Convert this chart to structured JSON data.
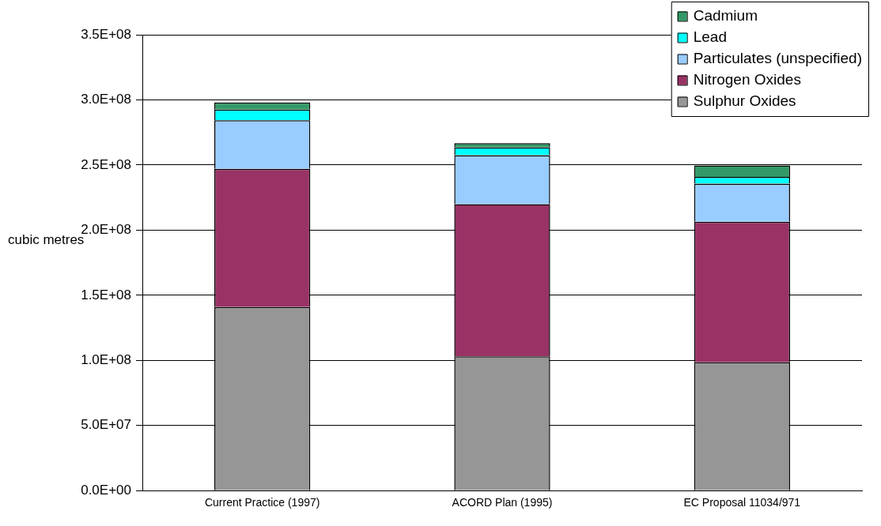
{
  "chart_data": {
    "type": "bar",
    "stacked": true,
    "ylabel": "cubic metres",
    "categories": [
      "Current Practice (1997)",
      "ACORD Plan (1995)",
      "EC Proposal 11034/971"
    ],
    "series": [
      {
        "name": "Sulphur Oxides",
        "color": "#969696",
        "values": [
          141000000,
          103000000,
          98500000
        ]
      },
      {
        "name": "Nitrogen Oxides",
        "color": "#993366",
        "values": [
          106000000,
          117000000,
          108000000
        ]
      },
      {
        "name": "Particulates (unspecified)",
        "color": "#99ccff",
        "values": [
          37300000,
          37600000,
          29200000
        ]
      },
      {
        "name": "Lead",
        "color": "#00ffff",
        "values": [
          8300000,
          6000000,
          5200000
        ]
      },
      {
        "name": "Cadmium",
        "color": "#339966",
        "values": [
          5400000,
          3200000,
          8700000
        ]
      }
    ],
    "ylim": [
      0,
      350000000
    ],
    "yticks": [
      {
        "value": 0,
        "label": "0.0E+00"
      },
      {
        "value": 50000000,
        "label": "5.0E+07"
      },
      {
        "value": 100000000,
        "label": "1.0E+08"
      },
      {
        "value": 150000000,
        "label": "1.5E+08"
      },
      {
        "value": 200000000,
        "label": "2.0E+08"
      },
      {
        "value": 250000000,
        "label": "2.5E+08"
      },
      {
        "value": 300000000,
        "label": "3.0E+08"
      },
      {
        "value": 350000000,
        "label": "3.5E+08"
      }
    ],
    "grid": "y",
    "legend": "top right"
  }
}
